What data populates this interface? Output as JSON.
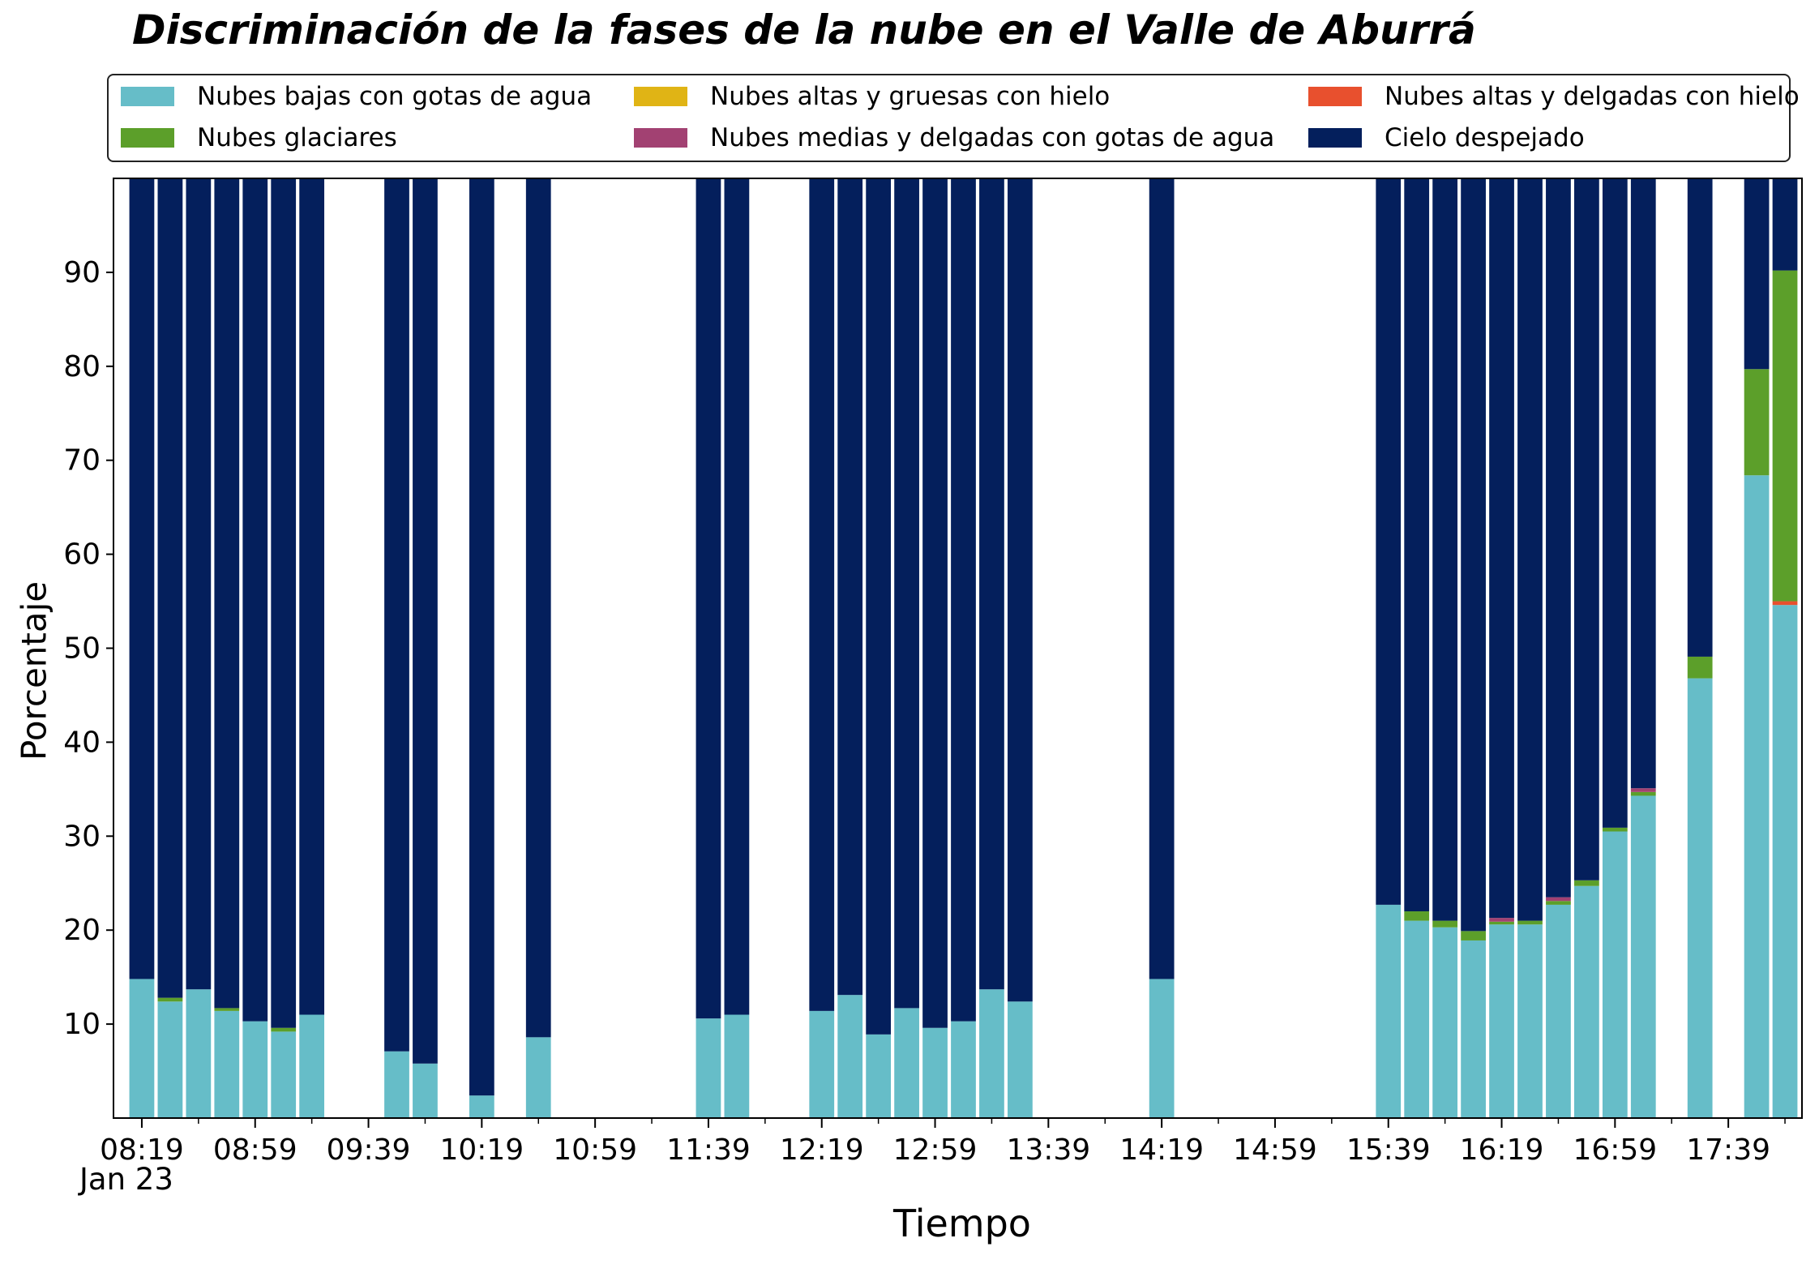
{
  "chart_data": {
    "type": "bar",
    "stacked": true,
    "title": "Discriminación de la fases de la nube en el Valle de Aburrá",
    "xlabel": "Tiempo",
    "ylabel": "Porcentaje",
    "date_label": "Jan 23",
    "xlim": [
      "08:09",
      "18:05"
    ],
    "ylim": [
      0,
      100
    ],
    "yticks": [
      10,
      20,
      30,
      40,
      50,
      60,
      70,
      80,
      90
    ],
    "xtick_labels": [
      "08:19",
      "08:59",
      "09:39",
      "10:19",
      "10:59",
      "11:39",
      "12:19",
      "12:59",
      "13:39",
      "14:19",
      "14:59",
      "15:39",
      "16:19",
      "16:59",
      "17:39"
    ],
    "x_minor_ticks": [
      "08:39",
      "09:19",
      "09:59",
      "10:39",
      "11:19",
      "11:59",
      "12:39",
      "13:19",
      "13:59",
      "14:39",
      "15:19",
      "15:59",
      "16:39",
      "17:19",
      "17:59"
    ],
    "legend_position": "top",
    "legend_columns": 3,
    "grid": false,
    "x": [
      "08:19",
      "08:29",
      "08:39",
      "08:49",
      "08:59",
      "09:09",
      "09:19",
      "09:49",
      "09:59",
      "10:19",
      "10:39",
      "11:39",
      "11:49",
      "12:19",
      "12:29",
      "12:39",
      "12:49",
      "12:59",
      "13:09",
      "13:19",
      "13:29",
      "14:19",
      "15:39",
      "15:49",
      "15:59",
      "16:09",
      "16:19",
      "16:29",
      "16:39",
      "16:49",
      "16:59",
      "17:09",
      "17:29",
      "17:49",
      "17:59"
    ],
    "series": [
      {
        "name": "Nubes bajas con gotas de agua",
        "color": "#66bdc8",
        "values": [
          14.8,
          12.4,
          13.7,
          11.4,
          10.3,
          9.2,
          11.0,
          7.1,
          5.8,
          2.4,
          8.6,
          10.6,
          11.0,
          11.4,
          13.1,
          8.9,
          11.7,
          9.6,
          10.3,
          13.7,
          12.4,
          14.8,
          22.7,
          21.0,
          20.3,
          18.9,
          20.6,
          20.6,
          22.7,
          24.7,
          30.5,
          34.3,
          46.8,
          68.4,
          54.6
        ]
      },
      {
        "name": "Nubes altas y gruesas con hielo",
        "color": "#e0b415",
        "values": [
          0,
          0,
          0,
          0,
          0,
          0,
          0,
          0,
          0,
          0,
          0,
          0,
          0,
          0,
          0,
          0,
          0,
          0,
          0,
          0,
          0,
          0,
          0,
          0,
          0,
          0,
          0,
          0,
          0,
          0,
          0,
          0,
          0,
          0,
          0
        ]
      },
      {
        "name": "Nubes altas y delgadas con hielo",
        "color": "#e8502e",
        "values": [
          0,
          0,
          0,
          0,
          0,
          0,
          0,
          0,
          0,
          0,
          0,
          0,
          0,
          0,
          0,
          0,
          0,
          0,
          0,
          0,
          0,
          0,
          0,
          0,
          0,
          0,
          0,
          0,
          0,
          0,
          0,
          0,
          0,
          0,
          0.4
        ]
      },
      {
        "name": "Nubes glaciares",
        "color": "#5c9f2a",
        "values": [
          0,
          0.4,
          0,
          0.3,
          0,
          0.4,
          0,
          0,
          0,
          0,
          0,
          0,
          0,
          0,
          0,
          0,
          0,
          0,
          0,
          0,
          0,
          0,
          0,
          1.0,
          0.7,
          1.0,
          0.3,
          0.4,
          0.4,
          0.6,
          0.4,
          0.4,
          2.3,
          11.3,
          35.2
        ]
      },
      {
        "name": "Nubes medias y delgadas con gotas de agua",
        "color": "#a24172",
        "values": [
          0,
          0,
          0,
          0,
          0,
          0,
          0,
          0,
          0,
          0,
          0,
          0,
          0,
          0,
          0,
          0,
          0,
          0,
          0,
          0,
          0,
          0,
          0,
          0,
          0,
          0,
          0.4,
          0,
          0.4,
          0,
          0,
          0.4,
          0,
          0,
          0
        ]
      },
      {
        "name": "Cielo despejado",
        "color": "#041f5c",
        "values": [
          85.2,
          87.2,
          86.3,
          88.3,
          89.7,
          90.4,
          89.0,
          92.9,
          94.2,
          97.6,
          91.4,
          89.4,
          89.0,
          88.6,
          86.9,
          91.1,
          88.3,
          90.4,
          89.7,
          86.3,
          87.6,
          85.2,
          77.3,
          78.0,
          79.0,
          80.1,
          78.7,
          79.0,
          76.5,
          74.7,
          69.1,
          64.9,
          50.9,
          20.3,
          9.8
        ]
      }
    ]
  }
}
